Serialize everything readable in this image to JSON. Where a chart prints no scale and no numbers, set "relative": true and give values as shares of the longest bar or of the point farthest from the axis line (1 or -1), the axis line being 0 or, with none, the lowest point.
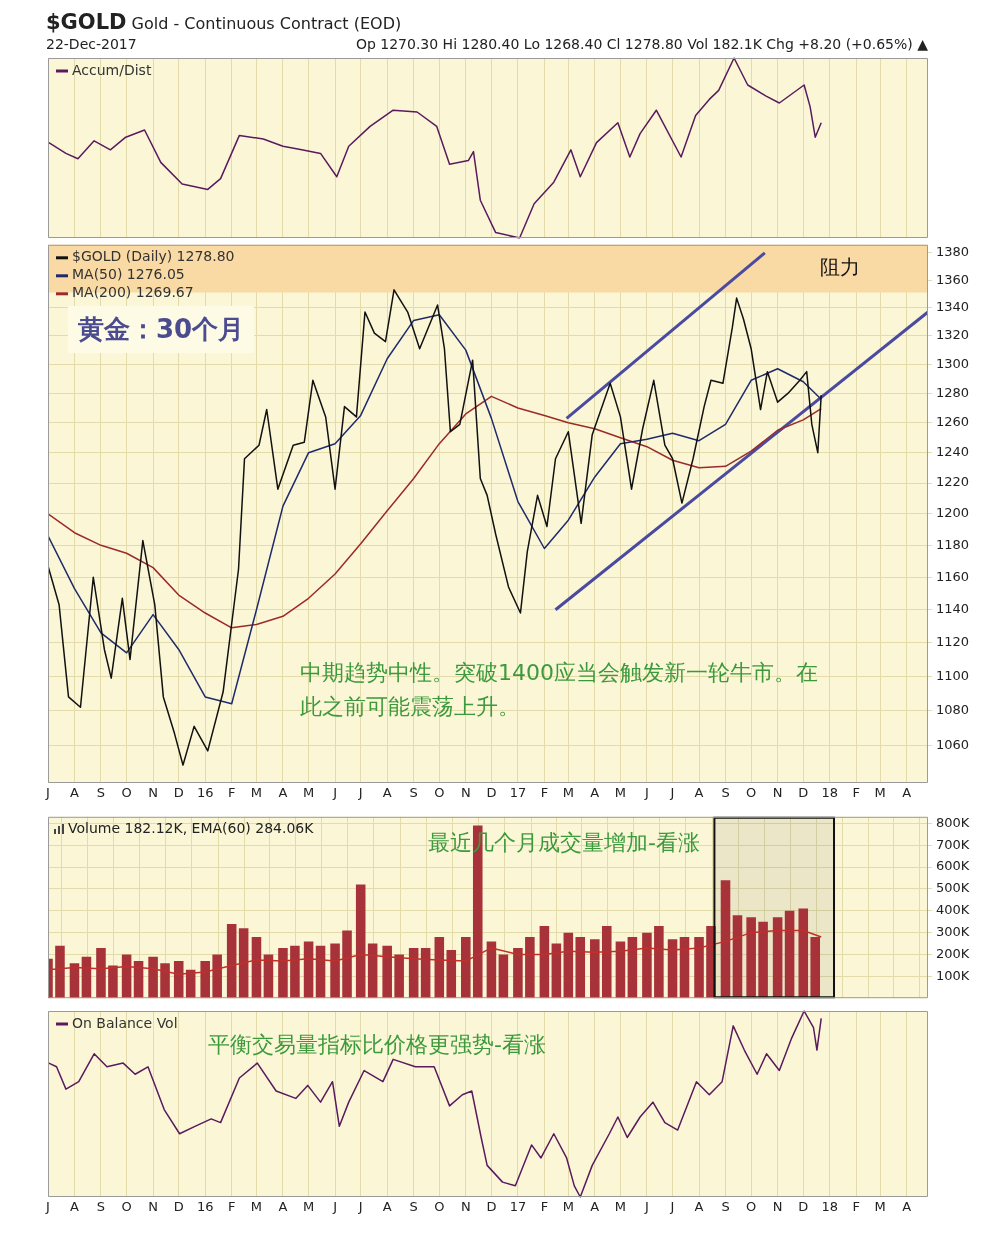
{
  "chart_data": [
    {
      "type": "line",
      "title": "$GOLD Gold - Continuous Contract (EOD)",
      "subtitle": "22-Dec-2017",
      "annotations": [
        "Op 1270.30  Hi 1280.40  Lo 1268.40  Cl 1278.80  Vol 182.1K  Chg +8.20 (+0.65%) ▲"
      ],
      "relative": true,
      "legend": "top left",
      "grid": "x",
      "tick_labels": false,
      "xlim": [
        "2015-07-01",
        "2018-04-26"
      ],
      "xticks": [
        {
          "value": "2015-07-01",
          "label": null
        },
        {
          "value": "2015-08-01",
          "label": null
        },
        {
          "value": "2015-09-01",
          "label": null
        },
        {
          "value": "2015-10-01",
          "label": null
        },
        {
          "value": "2015-11-01",
          "label": null
        },
        {
          "value": "2015-12-01",
          "label": null
        },
        {
          "value": "2016-01-01",
          "label": null
        },
        {
          "value": "2016-02-01",
          "label": null
        },
        {
          "value": "2016-03-01",
          "label": null
        },
        {
          "value": "2016-04-01",
          "label": null
        },
        {
          "value": "2016-05-01",
          "label": null
        },
        {
          "value": "2016-06-01",
          "label": null
        },
        {
          "value": "2016-07-01",
          "label": null
        },
        {
          "value": "2016-08-01",
          "label": null
        },
        {
          "value": "2016-09-01",
          "label": null
        },
        {
          "value": "2016-10-01",
          "label": null
        },
        {
          "value": "2016-11-01",
          "label": null
        },
        {
          "value": "2016-12-01",
          "label": null
        },
        {
          "value": "2017-01-01",
          "label": null
        },
        {
          "value": "2017-02-01",
          "label": null
        },
        {
          "value": "2017-03-01",
          "label": null
        },
        {
          "value": "2017-04-01",
          "label": null
        },
        {
          "value": "2017-05-01",
          "label": null
        },
        {
          "value": "2017-06-01",
          "label": null
        },
        {
          "value": "2017-07-01",
          "label": null
        },
        {
          "value": "2017-08-01",
          "label": null
        },
        {
          "value": "2017-09-01",
          "label": null
        },
        {
          "value": "2017-10-01",
          "label": null
        },
        {
          "value": "2017-11-01",
          "label": null
        },
        {
          "value": "2017-12-01",
          "label": null
        },
        {
          "value": "2018-01-01",
          "label": null
        },
        {
          "value": "2018-02-01",
          "label": null
        },
        {
          "value": "2018-03-01",
          "label": null
        },
        {
          "value": "2018-04-01",
          "label": null
        }
      ],
      "series": [
        {
          "name": "Accum/Dist",
          "color": "#5a1a5e",
          "x": [
            "2015-07-02",
            "2015-07-22",
            "2015-08-05",
            "2015-08-24",
            "2015-09-12",
            "2015-09-30",
            "2015-10-22",
            "2015-11-10",
            "2015-12-05",
            "2016-01-04",
            "2016-01-19",
            "2016-02-10",
            "2016-03-09",
            "2016-04-01",
            "2016-04-23",
            "2016-05-15",
            "2016-06-03",
            "2016-06-17",
            "2016-07-12",
            "2016-08-08",
            "2016-09-05",
            "2016-09-28",
            "2016-10-13",
            "2016-11-04",
            "2016-11-10",
            "2016-11-18",
            "2016-12-06",
            "2017-01-03",
            "2017-01-20",
            "2017-02-12",
            "2017-03-04",
            "2017-03-15",
            "2017-04-03",
            "2017-04-28",
            "2017-05-12",
            "2017-05-24",
            "2017-06-12",
            "2017-07-11",
            "2017-07-28",
            "2017-08-13",
            "2017-08-24",
            "2017-09-11",
            "2017-09-27",
            "2017-10-18",
            "2017-11-03",
            "2017-12-02",
            "2017-12-09",
            "2017-12-15",
            "2017-12-22"
          ],
          "values": [
            0.53,
            0.47,
            0.44,
            0.54,
            0.49,
            0.56,
            0.6,
            0.42,
            0.3,
            0.27,
            0.33,
            0.57,
            0.55,
            0.51,
            0.49,
            0.47,
            0.34,
            0.51,
            0.62,
            0.71,
            0.7,
            0.62,
            0.41,
            0.43,
            0.48,
            0.21,
            0.03,
            0,
            0.19,
            0.31,
            0.49,
            0.34,
            0.53,
            0.64,
            0.45,
            0.58,
            0.71,
            0.45,
            0.68,
            0.77,
            0.82,
            1,
            0.85,
            0.79,
            0.75,
            0.85,
            0.73,
            0.56,
            0.64
          ]
        }
      ]
    },
    {
      "type": "line",
      "annotations": [
        "黄金：30个月",
        "中期趋势中性。突破1400应当会触发新一轮牛市。在此之前可能震荡上升。"
      ],
      "log": "y",
      "legend": "top left",
      "grid": true,
      "tick_labels": "xy",
      "xlim": [
        "2015-07-01",
        "2018-04-26"
      ],
      "xticks": [
        {
          "value": "2015-07-01",
          "label": "J"
        },
        {
          "value": "2015-08-01",
          "label": "A"
        },
        {
          "value": "2015-09-01",
          "label": "S"
        },
        {
          "value": "2015-10-01",
          "label": "O"
        },
        {
          "value": "2015-11-01",
          "label": "N"
        },
        {
          "value": "2015-12-01",
          "label": "D"
        },
        {
          "value": "2016-01-01",
          "label": "16"
        },
        {
          "value": "2016-02-01",
          "label": "F"
        },
        {
          "value": "2016-03-01",
          "label": "M"
        },
        {
          "value": "2016-04-01",
          "label": "A"
        },
        {
          "value": "2016-05-01",
          "label": "M"
        },
        {
          "value": "2016-06-01",
          "label": "J"
        },
        {
          "value": "2016-07-01",
          "label": "J"
        },
        {
          "value": "2016-08-01",
          "label": "A"
        },
        {
          "value": "2016-09-01",
          "label": "S"
        },
        {
          "value": "2016-10-01",
          "label": "O"
        },
        {
          "value": "2016-11-01",
          "label": "N"
        },
        {
          "value": "2016-12-01",
          "label": "D"
        },
        {
          "value": "2017-01-01",
          "label": "17"
        },
        {
          "value": "2017-02-01",
          "label": "F"
        },
        {
          "value": "2017-03-01",
          "label": "M"
        },
        {
          "value": "2017-04-01",
          "label": "A"
        },
        {
          "value": "2017-05-01",
          "label": "M"
        },
        {
          "value": "2017-06-01",
          "label": "J"
        },
        {
          "value": "2017-07-01",
          "label": "J"
        },
        {
          "value": "2017-08-01",
          "label": "A"
        },
        {
          "value": "2017-09-01",
          "label": "S"
        },
        {
          "value": "2017-10-01",
          "label": "O"
        },
        {
          "value": "2017-11-01",
          "label": "N"
        },
        {
          "value": "2017-12-01",
          "label": "D"
        },
        {
          "value": "2018-01-01",
          "label": "18"
        },
        {
          "value": "2018-02-01",
          "label": "F"
        },
        {
          "value": "2018-03-01",
          "label": "M"
        },
        {
          "value": "2018-04-01",
          "label": "A"
        }
      ],
      "ylim": [
        1039,
        1386
      ],
      "yticks": [
        1060,
        1080,
        1100,
        1120,
        1140,
        1160,
        1180,
        1200,
        1220,
        1240,
        1260,
        1280,
        1300,
        1320,
        1340,
        1360,
        1380
      ],
      "bands": [
        {
          "axis": "y",
          "from": 1351,
          "to": 1386,
          "label": "阻力",
          "color": "#f9d9a4"
        }
      ],
      "series": [
        {
          "name": "$GOLD (Daily) 1278.80",
          "color": "#111111",
          "x": [
            "2015-07-01",
            "2015-07-14",
            "2015-07-25",
            "2015-08-08",
            "2015-08-23",
            "2015-09-05",
            "2015-09-13",
            "2015-09-26",
            "2015-10-05",
            "2015-10-20",
            "2015-11-03",
            "2015-11-13",
            "2015-11-26",
            "2015-12-06",
            "2015-12-19",
            "2016-01-04",
            "2016-01-22",
            "2016-02-09",
            "2016-02-16",
            "2016-03-04",
            "2016-03-13",
            "2016-03-26",
            "2016-04-13",
            "2016-04-26",
            "2016-05-06",
            "2016-05-21",
            "2016-06-01",
            "2016-06-12",
            "2016-06-26",
            "2016-07-06",
            "2016-07-17",
            "2016-07-30",
            "2016-08-09",
            "2016-08-25",
            "2016-09-08",
            "2016-09-29",
            "2016-10-07",
            "2016-10-14",
            "2016-10-25",
            "2016-11-09",
            "2016-11-18",
            "2016-11-26",
            "2016-12-06",
            "2016-12-21",
            "2017-01-04",
            "2017-01-12",
            "2017-01-24",
            "2017-02-04",
            "2017-02-14",
            "2017-03-01",
            "2017-03-16",
            "2017-03-29",
            "2017-04-19",
            "2017-05-01",
            "2017-05-14",
            "2017-05-27",
            "2017-06-09",
            "2017-06-22",
            "2017-07-01",
            "2017-07-12",
            "2017-07-25",
            "2017-08-07",
            "2017-08-15",
            "2017-08-29",
            "2017-09-09",
            "2017-09-14",
            "2017-09-22",
            "2017-10-01",
            "2017-10-12",
            "2017-10-20",
            "2017-11-01",
            "2017-11-13",
            "2017-11-27",
            "2017-12-05",
            "2017-12-11",
            "2017-12-18",
            "2017-12-22"
          ],
          "values": [
            1167,
            1143,
            1088,
            1082,
            1160,
            1116,
            1099,
            1147,
            1110,
            1183,
            1143,
            1088,
            1067,
            1049,
            1071,
            1057,
            1091,
            1165,
            1236,
            1245,
            1269,
            1216,
            1245,
            1247,
            1289,
            1264,
            1216,
            1271,
            1264,
            1337,
            1322,
            1316,
            1353,
            1337,
            1311,
            1342,
            1311,
            1254,
            1259,
            1303,
            1223,
            1212,
            1187,
            1154,
            1138,
            1176,
            1212,
            1192,
            1236,
            1254,
            1194,
            1252,
            1287,
            1264,
            1216,
            1256,
            1289,
            1245,
            1236,
            1207,
            1236,
            1271,
            1289,
            1287,
            1326,
            1347,
            1332,
            1311,
            1269,
            1295,
            1274,
            1280,
            1289,
            1295,
            1259,
            1240,
            1278.8
          ]
        },
        {
          "name": "MA(50) 1276.05",
          "color": "#1f2a6b",
          "x": [
            "2015-07-01",
            "2015-08-01",
            "2015-09-01",
            "2015-10-01",
            "2015-11-01",
            "2015-12-01",
            "2016-01-01",
            "2016-02-01",
            "2016-03-01",
            "2016-04-01",
            "2016-05-01",
            "2016-06-01",
            "2016-07-01",
            "2016-08-01",
            "2016-09-01",
            "2016-10-01",
            "2016-11-01",
            "2016-12-01",
            "2017-01-01",
            "2017-02-01",
            "2017-03-01",
            "2017-04-01",
            "2017-05-01",
            "2017-06-01",
            "2017-07-01",
            "2017-08-01",
            "2017-09-01",
            "2017-10-01",
            "2017-11-01",
            "2017-12-01",
            "2017-12-22"
          ],
          "values": [
            1186,
            1153,
            1126,
            1114,
            1137,
            1116,
            1088,
            1084,
            1140,
            1205,
            1240,
            1246,
            1265,
            1304,
            1331,
            1335,
            1310,
            1263,
            1208,
            1178,
            1196,
            1224,
            1246,
            1249,
            1253,
            1248,
            1259,
            1289,
            1297,
            1288,
            1276.05
          ]
        },
        {
          "name": "MA(200) 1269.67",
          "color": "#9b2a2a",
          "x": [
            "2015-07-01",
            "2015-08-01",
            "2015-09-01",
            "2015-10-01",
            "2015-11-01",
            "2015-12-01",
            "2016-01-01",
            "2016-02-01",
            "2016-03-01",
            "2016-04-01",
            "2016-05-01",
            "2016-06-01",
            "2016-07-01",
            "2016-08-01",
            "2016-09-01",
            "2016-10-01",
            "2016-11-01",
            "2016-12-01",
            "2017-01-01",
            "2017-02-01",
            "2017-03-01",
            "2017-04-01",
            "2017-05-01",
            "2017-06-01",
            "2017-07-01",
            "2017-08-01",
            "2017-09-01",
            "2017-10-01",
            "2017-11-01",
            "2017-12-01",
            "2017-12-22"
          ],
          "values": [
            1200,
            1188,
            1180,
            1175,
            1166,
            1149,
            1138,
            1129,
            1131,
            1136,
            1147,
            1162,
            1181,
            1202,
            1223,
            1246,
            1266,
            1278,
            1270,
            1265,
            1260,
            1256,
            1250,
            1244,
            1235,
            1230,
            1231,
            1241,
            1255,
            1262,
            1269.67
          ]
        },
        {
          "type": "line",
          "color": "#4a4aa0",
          "x": [
            "2017-02-27",
            "2017-10-17"
          ],
          "values": [
            1263,
            1380
          ]
        },
        {
          "type": "line",
          "color": "#4a4aa0",
          "x": [
            "2017-02-14",
            "2018-04-26"
          ],
          "values": [
            1140,
            1337
          ]
        }
      ]
    },
    {
      "type": "bar",
      "title": "Volume 182.12K, EMA(60) 284.06K",
      "annotations": [
        "最近几个月成交量增加-看涨"
      ],
      "grid": true,
      "tick_labels": "y",
      "xlim": [
        "2015-07-01",
        "2018-04-26"
      ],
      "xticks": [
        {
          "value": "2015-07-01",
          "label": null
        },
        {
          "value": "2015-08-01",
          "label": null
        },
        {
          "value": "2015-09-01",
          "label": null
        },
        {
          "value": "2015-10-01",
          "label": null
        },
        {
          "value": "2015-11-01",
          "label": null
        },
        {
          "value": "2015-12-01",
          "label": null
        },
        {
          "value": "2016-01-01",
          "label": null
        },
        {
          "value": "2016-02-01",
          "label": null
        },
        {
          "value": "2016-03-01",
          "label": null
        },
        {
          "value": "2016-04-01",
          "label": null
        },
        {
          "value": "2016-05-01",
          "label": null
        },
        {
          "value": "2016-06-01",
          "label": null
        },
        {
          "value": "2016-07-01",
          "label": null
        },
        {
          "value": "2016-08-01",
          "label": null
        },
        {
          "value": "2016-09-01",
          "label": null
        },
        {
          "value": "2016-10-01",
          "label": null
        },
        {
          "value": "2016-11-01",
          "label": null
        },
        {
          "value": "2016-12-01",
          "label": null
        },
        {
          "value": "2017-01-01",
          "label": null
        },
        {
          "value": "2017-02-01",
          "label": null
        },
        {
          "value": "2017-03-01",
          "label": null
        },
        {
          "value": "2017-04-01",
          "label": null
        },
        {
          "value": "2017-05-01",
          "label": null
        },
        {
          "value": "2017-06-01",
          "label": null
        },
        {
          "value": "2017-07-01",
          "label": null
        },
        {
          "value": "2017-08-01",
          "label": null
        },
        {
          "value": "2017-09-01",
          "label": null
        },
        {
          "value": "2017-10-01",
          "label": null
        },
        {
          "value": "2017-11-01",
          "label": null
        },
        {
          "value": "2017-12-01",
          "label": null
        },
        {
          "value": "2018-01-01",
          "label": null
        },
        {
          "value": "2018-02-01",
          "label": null
        },
        {
          "value": "2018-03-01",
          "label": null
        },
        {
          "value": "2018-04-01",
          "label": null
        }
      ],
      "bands": [
        {
          "axis": "x",
          "from": "2017-08-19",
          "to": "2018-01-06",
          "color": "#111111"
        }
      ],
      "ylim": [
        0,
        830000
      ],
      "yticks": [
        {
          "value": 100000,
          "label": "100K"
        },
        {
          "value": 200000,
          "label": "200K"
        },
        {
          "value": 300000,
          "label": "300K"
        },
        {
          "value": 400000,
          "label": "400K"
        },
        {
          "value": 500000,
          "label": "500K"
        },
        {
          "value": 600000,
          "label": "600K"
        },
        {
          "value": 700000,
          "label": "700K"
        },
        {
          "value": 800000,
          "label": "800K"
        }
      ],
      "series": [
        {
          "color": "#a8323a",
          "x": [
            "2015-07-01",
            "2015-07-15",
            "2015-08-01",
            "2015-08-15",
            "2015-09-01",
            "2015-09-15",
            "2015-10-01",
            "2015-10-15",
            "2015-11-01",
            "2015-11-15",
            "2015-12-01",
            "2015-12-15",
            "2016-01-01",
            "2016-01-15",
            "2016-02-01",
            "2016-02-15",
            "2016-03-01",
            "2016-03-15",
            "2016-04-01",
            "2016-04-15",
            "2016-05-01",
            "2016-05-15",
            "2016-06-01",
            "2016-06-15",
            "2016-07-01",
            "2016-07-15",
            "2016-08-01",
            "2016-08-15",
            "2016-09-01",
            "2016-09-15",
            "2016-10-01",
            "2016-10-15",
            "2016-11-01",
            "2016-11-15",
            "2016-12-01",
            "2016-12-15",
            "2017-01-01",
            "2017-01-15",
            "2017-02-01",
            "2017-02-15",
            "2017-03-01",
            "2017-03-15",
            "2017-04-01",
            "2017-04-15",
            "2017-05-01",
            "2017-05-15",
            "2017-06-01",
            "2017-06-15",
            "2017-07-01",
            "2017-07-15",
            "2017-08-01",
            "2017-08-15",
            "2017-09-01",
            "2017-09-15",
            "2017-10-01",
            "2017-10-15",
            "2017-11-01",
            "2017-11-15",
            "2017-12-01",
            "2017-12-15"
          ],
          "values": [
            180000,
            240000,
            160000,
            190000,
            230000,
            150000,
            200000,
            170000,
            190000,
            160000,
            170000,
            130000,
            170000,
            200000,
            340000,
            320000,
            280000,
            200000,
            230000,
            240000,
            260000,
            240000,
            250000,
            310000,
            520000,
            250000,
            240000,
            200000,
            230000,
            230000,
            280000,
            220000,
            280000,
            790000,
            260000,
            200000,
            230000,
            280000,
            330000,
            250000,
            300000,
            280000,
            270000,
            330000,
            260000,
            280000,
            300000,
            330000,
            270000,
            280000,
            280000,
            330000,
            540000,
            380000,
            370000,
            350000,
            370000,
            400000,
            410000,
            280000
          ]
        },
        {
          "type": "line",
          "color": "#c0302a",
          "x": [
            "2015-07-01",
            "2015-08-01",
            "2015-09-01",
            "2015-10-01",
            "2015-11-01",
            "2015-12-01",
            "2016-01-01",
            "2016-02-01",
            "2016-03-01",
            "2016-04-01",
            "2016-05-01",
            "2016-06-01",
            "2016-07-01",
            "2016-08-01",
            "2016-09-01",
            "2016-10-01",
            "2016-11-01",
            "2016-12-01",
            "2017-01-01",
            "2017-02-01",
            "2017-03-01",
            "2017-04-01",
            "2017-05-01",
            "2017-06-01",
            "2017-07-01",
            "2017-08-01",
            "2017-09-01",
            "2017-10-01",
            "2017-11-01",
            "2017-12-01",
            "2017-12-22"
          ],
          "values": [
            130000,
            140000,
            135000,
            145000,
            135000,
            110000,
            120000,
            150000,
            175000,
            170000,
            180000,
            170000,
            200000,
            190000,
            180000,
            175000,
            170000,
            230000,
            200000,
            200000,
            215000,
            210000,
            215000,
            230000,
            220000,
            230000,
            260000,
            300000,
            310000,
            310000,
            280000
          ]
        }
      ]
    },
    {
      "type": "line",
      "annotations": [
        "平衡交易量指标比价格更强势-看涨"
      ],
      "relative": true,
      "legend": "top left",
      "grid": "x",
      "tick_labels": "x",
      "xlim": [
        "2015-07-01",
        "2018-04-26"
      ],
      "xticks": [
        {
          "value": "2015-07-01",
          "label": "J"
        },
        {
          "value": "2015-08-01",
          "label": "A"
        },
        {
          "value": "2015-09-01",
          "label": "S"
        },
        {
          "value": "2015-10-01",
          "label": "O"
        },
        {
          "value": "2015-11-01",
          "label": "N"
        },
        {
          "value": "2015-12-01",
          "label": "D"
        },
        {
          "value": "2016-01-01",
          "label": "16"
        },
        {
          "value": "2016-02-01",
          "label": "F"
        },
        {
          "value": "2016-03-01",
          "label": "M"
        },
        {
          "value": "2016-04-01",
          "label": "A"
        },
        {
          "value": "2016-05-01",
          "label": "M"
        },
        {
          "value": "2016-06-01",
          "label": "J"
        },
        {
          "value": "2016-07-01",
          "label": "J"
        },
        {
          "value": "2016-08-01",
          "label": "A"
        },
        {
          "value": "2016-09-01",
          "label": "S"
        },
        {
          "value": "2016-10-01",
          "label": "O"
        },
        {
          "value": "2016-11-01",
          "label": "N"
        },
        {
          "value": "2016-12-01",
          "label": "D"
        },
        {
          "value": "2017-01-01",
          "label": "17"
        },
        {
          "value": "2017-02-01",
          "label": "F"
        },
        {
          "value": "2017-03-01",
          "label": "M"
        },
        {
          "value": "2017-04-01",
          "label": "A"
        },
        {
          "value": "2017-05-01",
          "label": "M"
        },
        {
          "value": "2017-06-01",
          "label": "J"
        },
        {
          "value": "2017-07-01",
          "label": "J"
        },
        {
          "value": "2017-08-01",
          "label": "A"
        },
        {
          "value": "2017-09-01",
          "label": "S"
        },
        {
          "value": "2017-10-01",
          "label": "O"
        },
        {
          "value": "2017-11-01",
          "label": "N"
        },
        {
          "value": "2017-12-01",
          "label": "D"
        },
        {
          "value": "2018-01-01",
          "label": "18"
        },
        {
          "value": "2018-02-01",
          "label": "F"
        },
        {
          "value": "2018-03-01",
          "label": "M"
        },
        {
          "value": "2018-04-01",
          "label": "A"
        }
      ],
      "series": [
        {
          "name": "On Balance Vol",
          "color": "#5a1a5e",
          "x": [
            "2015-07-02",
            "2015-07-11",
            "2015-07-22",
            "2015-08-06",
            "2015-08-24",
            "2015-09-08",
            "2015-09-27",
            "2015-10-11",
            "2015-10-26",
            "2015-11-14",
            "2015-12-02",
            "2015-12-20",
            "2016-01-08",
            "2016-01-19",
            "2016-02-10",
            "2016-03-02",
            "2016-03-24",
            "2016-04-16",
            "2016-04-30",
            "2016-05-15",
            "2016-05-29",
            "2016-06-06",
            "2016-06-17",
            "2016-07-05",
            "2016-07-27",
            "2016-08-08",
            "2016-09-03",
            "2016-09-25",
            "2016-10-13",
            "2016-10-28",
            "2016-11-08",
            "2016-11-19",
            "2016-11-26",
            "2016-12-14",
            "2016-12-29",
            "2017-01-17",
            "2017-01-28",
            "2017-02-12",
            "2017-02-27",
            "2017-03-08",
            "2017-03-15",
            "2017-03-29",
            "2017-04-18",
            "2017-04-28",
            "2017-05-09",
            "2017-05-24",
            "2017-06-08",
            "2017-06-22",
            "2017-07-07",
            "2017-07-29",
            "2017-08-13",
            "2017-08-28",
            "2017-09-10",
            "2017-09-23",
            "2017-10-08",
            "2017-10-19",
            "2017-11-03",
            "2017-11-17",
            "2017-12-02",
            "2017-12-13",
            "2017-12-17",
            "2017-12-22"
          ],
          "values": [
            0.72,
            0.7,
            0.58,
            0.62,
            0.77,
            0.7,
            0.72,
            0.66,
            0.7,
            0.47,
            0.34,
            0.38,
            0.42,
            0.4,
            0.64,
            0.72,
            0.57,
            0.53,
            0.6,
            0.51,
            0.62,
            0.38,
            0.51,
            0.68,
            0.62,
            0.74,
            0.7,
            0.7,
            0.49,
            0.55,
            0.57,
            0.32,
            0.17,
            0.08,
            0.06,
            0.28,
            0.21,
            0.34,
            0.21,
            0.06,
            0,
            0.17,
            0.34,
            0.43,
            0.32,
            0.43,
            0.51,
            0.4,
            0.36,
            0.62,
            0.55,
            0.62,
            0.92,
            0.79,
            0.66,
            0.77,
            0.68,
            0.85,
            1,
            0.91,
            0.79,
            0.96
          ]
        }
      ]
    }
  ]
}
